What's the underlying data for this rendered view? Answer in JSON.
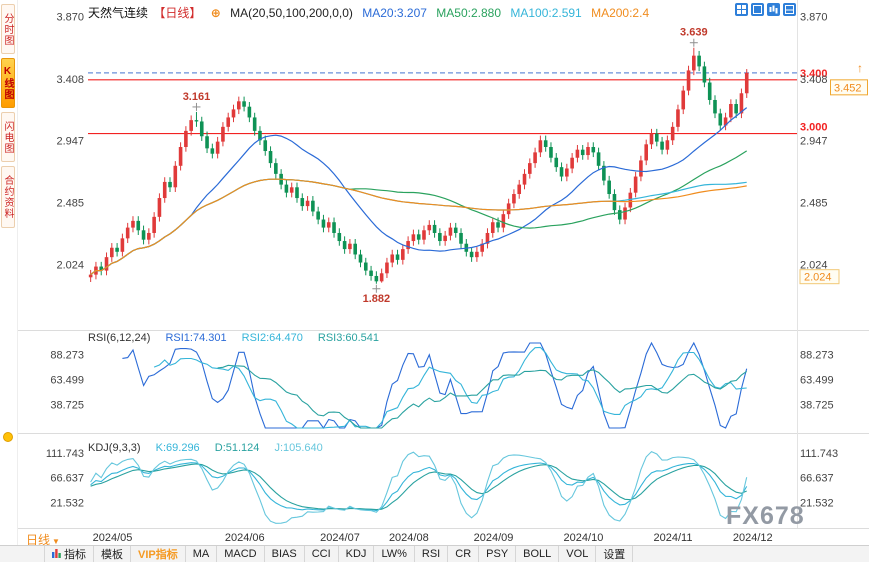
{
  "accent_color": "#f59a23",
  "sidebar": {
    "tabs": [
      {
        "label": "分时图",
        "active": false
      },
      {
        "label": "K线图",
        "active": true
      },
      {
        "label": "闪电图",
        "active": false
      },
      {
        "label": "合约资料",
        "active": false
      }
    ]
  },
  "header": {
    "title": "天然气连续",
    "period_tag": "【日线】",
    "plus_icon": "⊕",
    "ma_label": "MA(20,50,100,200,0,0)",
    "ma_values": [
      "MA20:3.207",
      "MA50:2.880",
      "MA100:2.591",
      "MA200:2.4"
    ]
  },
  "rsi_header": {
    "label": "RSI(6,12,24)",
    "values": [
      "RSI1:74.301",
      "RSI2:64.470",
      "RSI3:60.541"
    ]
  },
  "kdj_header": {
    "label": "KDJ(9,3,3)",
    "values": [
      "K:69.296",
      "D:51.124",
      "J:105.640"
    ]
  },
  "bottom": {
    "period_label": "日线",
    "caret": "▼"
  },
  "watermark": "FX678",
  "toolbar": {
    "items": [
      "指标",
      "模板",
      "VIP指标",
      "MA",
      "MACD",
      "BIAS",
      "CCI",
      "KDJ",
      "LW%",
      "RSI",
      "CR",
      "PSY",
      "BOLL",
      "VOL",
      "设置"
    ]
  },
  "icons": [
    "grid-layout-icon",
    "single-panel-icon",
    "kline-style-icon",
    "split-panel-icon",
    "add-indicator-icon",
    "indicator-icon",
    "smiley-icon"
  ],
  "chart_data": {
    "type": "candlestick",
    "title": "天然气连续 日线",
    "up_color": "#e03a3a",
    "down_color": "#0e9255",
    "price_ticks": [
      3.87,
      3.408,
      2.947,
      2.485,
      2.024
    ],
    "hlines": [
      {
        "value": 3.452,
        "color": "#6a8fd8",
        "style": "dashed",
        "label": ""
      },
      {
        "value": 3.4,
        "color": "#f22222",
        "style": "solid",
        "label": "3.400"
      },
      {
        "value": 3.0,
        "color": "#f22222",
        "style": "solid",
        "label": "3.000"
      }
    ],
    "price_marker": {
      "value": 3.452,
      "label": "3.452",
      "color": "#f08c1e"
    },
    "low_marker": {
      "value": 2.024,
      "label": "2.024",
      "color": "#f08c1e"
    },
    "annotations": [
      {
        "index": 20,
        "price": 3.161,
        "label": "3.161",
        "position": "above"
      },
      {
        "index": 114,
        "price": 3.639,
        "label": "3.639",
        "position": "above"
      },
      {
        "index": 54,
        "price": 1.882,
        "label": "1.882",
        "position": "below"
      }
    ],
    "months": {
      "labels": [
        "2024/05",
        "2024/06",
        "2024/07",
        "2024/08",
        "2024/09",
        "2024/10",
        "2024/11",
        "2024/12"
      ],
      "start_indices": [
        0,
        25,
        43,
        56,
        72,
        89,
        106,
        121
      ]
    },
    "ma_settings": [
      {
        "period": 20,
        "color": "#2b6bd7"
      },
      {
        "period": 50,
        "color": "#2aa25e"
      },
      {
        "period": 100,
        "color": "#35b5d9"
      },
      {
        "period": 200,
        "color": "#f08c1e"
      }
    ],
    "rsi": {
      "periods": [
        6,
        12,
        24
      ],
      "colors": [
        "#2b6bd7",
        "#35b5d9",
        "#2aa2a0"
      ],
      "ticks": [
        88.273,
        63.499,
        38.725
      ],
      "values_last": [
        74.301,
        64.47,
        60.541
      ]
    },
    "kdj": {
      "params": [
        9,
        3,
        3
      ],
      "colors": [
        "#35b5d9",
        "#2aa2a0",
        "#67c7dd"
      ],
      "ticks": [
        111.743,
        66.637,
        21.532
      ],
      "values_last": [
        69.296,
        51.124,
        105.64
      ]
    },
    "candles": [
      [
        1.93,
        1.985,
        1.895,
        1.95
      ],
      [
        1.95,
        2.045,
        1.915,
        2.01
      ],
      [
        2.01,
        2.045,
        1.945,
        1.98
      ],
      [
        1.98,
        2.115,
        1.945,
        2.08
      ],
      [
        2.08,
        2.185,
        2.045,
        2.15
      ],
      [
        2.15,
        2.185,
        2.085,
        2.12
      ],
      [
        2.12,
        2.255,
        2.085,
        2.22
      ],
      [
        2.22,
        2.335,
        2.185,
        2.3
      ],
      [
        2.3,
        2.385,
        2.265,
        2.35
      ],
      [
        2.35,
        2.385,
        2.245,
        2.28
      ],
      [
        2.28,
        2.315,
        2.175,
        2.21
      ],
      [
        2.21,
        2.295,
        2.175,
        2.26
      ],
      [
        2.26,
        2.415,
        2.225,
        2.38
      ],
      [
        2.38,
        2.555,
        2.345,
        2.52
      ],
      [
        2.52,
        2.675,
        2.485,
        2.64
      ],
      [
        2.64,
        2.675,
        2.565,
        2.6
      ],
      [
        2.6,
        2.795,
        2.565,
        2.76
      ],
      [
        2.76,
        2.935,
        2.725,
        2.9
      ],
      [
        2.9,
        3.055,
        2.865,
        3.02
      ],
      [
        3.02,
        3.135,
        2.985,
        3.1
      ],
      [
        3.1,
        3.161,
        3.05,
        3.09
      ],
      [
        3.09,
        3.125,
        2.945,
        2.98
      ],
      [
        2.98,
        3.015,
        2.855,
        2.89
      ],
      [
        2.89,
        2.925,
        2.815,
        2.85
      ],
      [
        2.85,
        2.975,
        2.815,
        2.94
      ],
      [
        2.94,
        3.085,
        2.905,
        3.05
      ],
      [
        3.05,
        3.155,
        3.015,
        3.12
      ],
      [
        3.12,
        3.215,
        3.085,
        3.18
      ],
      [
        3.18,
        3.275,
        3.145,
        3.24
      ],
      [
        3.24,
        3.275,
        3.165,
        3.2
      ],
      [
        3.2,
        3.235,
        3.085,
        3.12
      ],
      [
        3.12,
        3.155,
        2.985,
        3.02
      ],
      [
        3.02,
        3.055,
        2.915,
        2.95
      ],
      [
        2.95,
        2.985,
        2.835,
        2.87
      ],
      [
        2.87,
        2.905,
        2.745,
        2.78
      ],
      [
        2.78,
        2.815,
        2.665,
        2.7
      ],
      [
        2.7,
        2.735,
        2.585,
        2.62
      ],
      [
        2.62,
        2.655,
        2.525,
        2.56
      ],
      [
        2.56,
        2.635,
        2.525,
        2.6
      ],
      [
        2.6,
        2.635,
        2.485,
        2.52
      ],
      [
        2.52,
        2.555,
        2.425,
        2.46
      ],
      [
        2.46,
        2.535,
        2.425,
        2.5
      ],
      [
        2.5,
        2.535,
        2.385,
        2.42
      ],
      [
        2.42,
        2.455,
        2.325,
        2.36
      ],
      [
        2.36,
        2.395,
        2.265,
        2.3
      ],
      [
        2.3,
        2.375,
        2.265,
        2.34
      ],
      [
        2.34,
        2.375,
        2.225,
        2.26
      ],
      [
        2.26,
        2.295,
        2.165,
        2.2
      ],
      [
        2.2,
        2.235,
        2.105,
        2.14
      ],
      [
        2.14,
        2.215,
        2.105,
        2.18
      ],
      [
        2.18,
        2.215,
        2.065,
        2.1
      ],
      [
        2.1,
        2.135,
        2.005,
        2.04
      ],
      [
        2.04,
        2.075,
        1.945,
        1.98
      ],
      [
        1.98,
        2.015,
        1.905,
        1.94
      ],
      [
        1.94,
        1.975,
        1.882,
        1.9
      ],
      [
        1.9,
        1.995,
        1.89,
        1.96
      ],
      [
        1.96,
        2.075,
        1.925,
        2.04
      ],
      [
        2.04,
        2.135,
        2.005,
        2.1
      ],
      [
        2.1,
        2.135,
        2.025,
        2.06
      ],
      [
        2.06,
        2.175,
        2.025,
        2.14
      ],
      [
        2.14,
        2.235,
        2.105,
        2.2
      ],
      [
        2.2,
        2.285,
        2.165,
        2.25
      ],
      [
        2.25,
        2.285,
        2.175,
        2.21
      ],
      [
        2.21,
        2.315,
        2.175,
        2.28
      ],
      [
        2.28,
        2.355,
        2.245,
        2.32
      ],
      [
        2.32,
        2.355,
        2.225,
        2.26
      ],
      [
        2.26,
        2.295,
        2.165,
        2.2
      ],
      [
        2.2,
        2.275,
        2.165,
        2.24
      ],
      [
        2.24,
        2.335,
        2.205,
        2.3
      ],
      [
        2.3,
        2.335,
        2.225,
        2.26
      ],
      [
        2.26,
        2.295,
        2.145,
        2.18
      ],
      [
        2.18,
        2.215,
        2.085,
        2.12
      ],
      [
        2.12,
        2.155,
        2.045,
        2.08
      ],
      [
        2.08,
        2.155,
        2.045,
        2.12
      ],
      [
        2.12,
        2.215,
        2.085,
        2.18
      ],
      [
        2.18,
        2.295,
        2.145,
        2.26
      ],
      [
        2.26,
        2.375,
        2.225,
        2.34
      ],
      [
        2.34,
        2.375,
        2.265,
        2.3
      ],
      [
        2.3,
        2.435,
        2.265,
        2.4
      ],
      [
        2.4,
        2.515,
        2.365,
        2.48
      ],
      [
        2.48,
        2.585,
        2.445,
        2.55
      ],
      [
        2.55,
        2.655,
        2.515,
        2.62
      ],
      [
        2.62,
        2.735,
        2.585,
        2.7
      ],
      [
        2.7,
        2.815,
        2.665,
        2.78
      ],
      [
        2.78,
        2.895,
        2.745,
        2.86
      ],
      [
        2.86,
        2.985,
        2.825,
        2.95
      ],
      [
        2.95,
        2.985,
        2.865,
        2.9
      ],
      [
        2.9,
        2.935,
        2.785,
        2.82
      ],
      [
        2.82,
        2.855,
        2.715,
        2.75
      ],
      [
        2.75,
        2.785,
        2.645,
        2.68
      ],
      [
        2.68,
        2.775,
        2.645,
        2.74
      ],
      [
        2.74,
        2.855,
        2.705,
        2.82
      ],
      [
        2.82,
        2.915,
        2.785,
        2.88
      ],
      [
        2.88,
        2.915,
        2.805,
        2.84
      ],
      [
        2.84,
        2.935,
        2.805,
        2.9
      ],
      [
        2.9,
        2.935,
        2.825,
        2.86
      ],
      [
        2.86,
        2.895,
        2.725,
        2.76
      ],
      [
        2.76,
        2.795,
        2.615,
        2.65
      ],
      [
        2.65,
        2.685,
        2.515,
        2.55
      ],
      [
        2.55,
        2.585,
        2.395,
        2.43
      ],
      [
        2.43,
        2.465,
        2.325,
        2.36
      ],
      [
        2.36,
        2.485,
        2.325,
        2.45
      ],
      [
        2.45,
        2.595,
        2.415,
        2.56
      ],
      [
        2.56,
        2.715,
        2.525,
        2.68
      ],
      [
        2.68,
        2.835,
        2.645,
        2.8
      ],
      [
        2.8,
        2.955,
        2.765,
        2.92
      ],
      [
        2.92,
        3.035,
        2.885,
        3.0
      ],
      [
        3.0,
        3.035,
        2.905,
        2.94
      ],
      [
        2.94,
        2.975,
        2.845,
        2.88
      ],
      [
        2.88,
        2.985,
        2.845,
        2.95
      ],
      [
        2.95,
        3.085,
        2.915,
        3.05
      ],
      [
        3.05,
        3.215,
        3.015,
        3.18
      ],
      [
        3.18,
        3.355,
        3.145,
        3.32
      ],
      [
        3.32,
        3.505,
        3.285,
        3.47
      ],
      [
        3.47,
        3.639,
        3.435,
        3.58
      ],
      [
        3.58,
        3.615,
        3.465,
        3.5
      ],
      [
        3.5,
        3.535,
        3.345,
        3.38
      ],
      [
        3.38,
        3.415,
        3.215,
        3.25
      ],
      [
        3.25,
        3.285,
        3.115,
        3.15
      ],
      [
        3.15,
        3.185,
        3.025,
        3.06
      ],
      [
        3.06,
        3.155,
        3.025,
        3.12
      ],
      [
        3.12,
        3.255,
        3.085,
        3.22
      ],
      [
        3.22,
        3.255,
        3.115,
        3.15
      ],
      [
        3.15,
        3.335,
        3.115,
        3.3
      ],
      [
        3.3,
        3.48,
        3.265,
        3.452
      ]
    ]
  }
}
